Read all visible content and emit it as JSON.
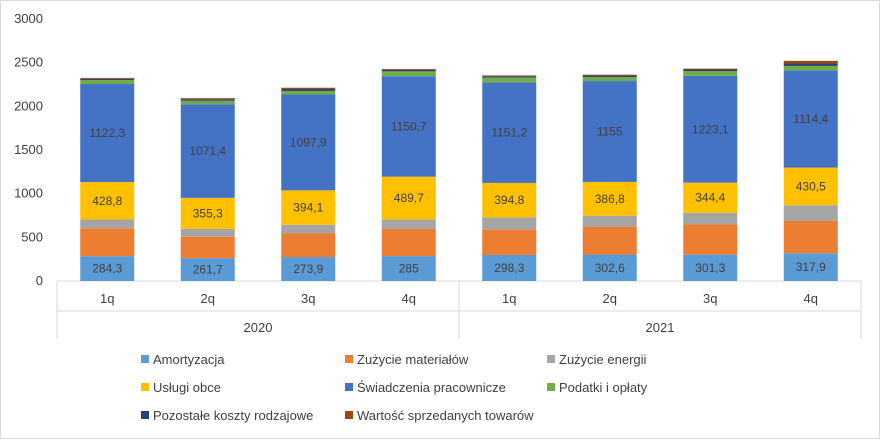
{
  "chart_data": {
    "type": "stacked-bar",
    "title": "",
    "xlabel": "",
    "ylabel": "",
    "ylim": [
      0,
      3000
    ],
    "y_ticks": [
      0,
      500,
      1000,
      1500,
      2000,
      2500,
      3000
    ],
    "grid": false,
    "legend_position": "bottom",
    "categories": [
      "1q",
      "2q",
      "3q",
      "4q",
      "1q",
      "2q",
      "3q",
      "4q"
    ],
    "groups": [
      {
        "label": "2020",
        "start": 0,
        "count": 4
      },
      {
        "label": "2021",
        "start": 4,
        "count": 4
      }
    ],
    "series": [
      {
        "name": "Amortyzacja",
        "color": "#5b9bd5",
        "values": [
          284.3,
          261.7,
          273.9,
          285,
          298.3,
          302.6,
          301.3,
          317.9
        ],
        "labels": [
          "284,3",
          "261,7",
          "273,9",
          "285",
          "298,3",
          "302,6",
          "301,3",
          "317,9"
        ]
      },
      {
        "name": "Zużycie materiałów",
        "color": "#ed7d31",
        "values": [
          320,
          245,
          270,
          310,
          290,
          320,
          345,
          370
        ]
      },
      {
        "name": "Zużycie energii",
        "color": "#a5a5a5",
        "values": [
          100,
          90,
          100,
          110,
          140,
          125,
          135,
          180
        ]
      },
      {
        "name": "Usługi obce",
        "color": "#ffc000",
        "values": [
          428.8,
          355.3,
          394.1,
          489.7,
          394.8,
          386.8,
          344.4,
          430.5
        ],
        "labels": [
          "428,8",
          "355,3",
          "394,1",
          "489,7",
          "394,8",
          "386,8",
          "344,4",
          "430,5"
        ]
      },
      {
        "name": "Świadczenia pracownicze",
        "color": "#4472c4",
        "values": [
          1122.3,
          1071.4,
          1097.9,
          1150.7,
          1151.2,
          1155,
          1223.1,
          1114.4
        ],
        "labels": [
          "1122,3",
          "1071,4",
          "1097,9",
          "1150,7",
          "1151,2",
          "1155",
          "1223,1",
          "1114,4"
        ]
      },
      {
        "name": "Podatki i opłaty",
        "color": "#70ad47",
        "values": [
          45,
          40,
          40,
          55,
          55,
          45,
          55,
          50
        ]
      },
      {
        "name": "Pozostałe koszty rodzajowe",
        "color": "#264478",
        "values": [
          15,
          18,
          22,
          18,
          15,
          18,
          18,
          28
        ]
      },
      {
        "name": "Wartość sprzedanych towarów",
        "color": "#9e480e",
        "values": [
          10,
          12,
          15,
          10,
          10,
          10,
          10,
          30
        ]
      }
    ]
  }
}
